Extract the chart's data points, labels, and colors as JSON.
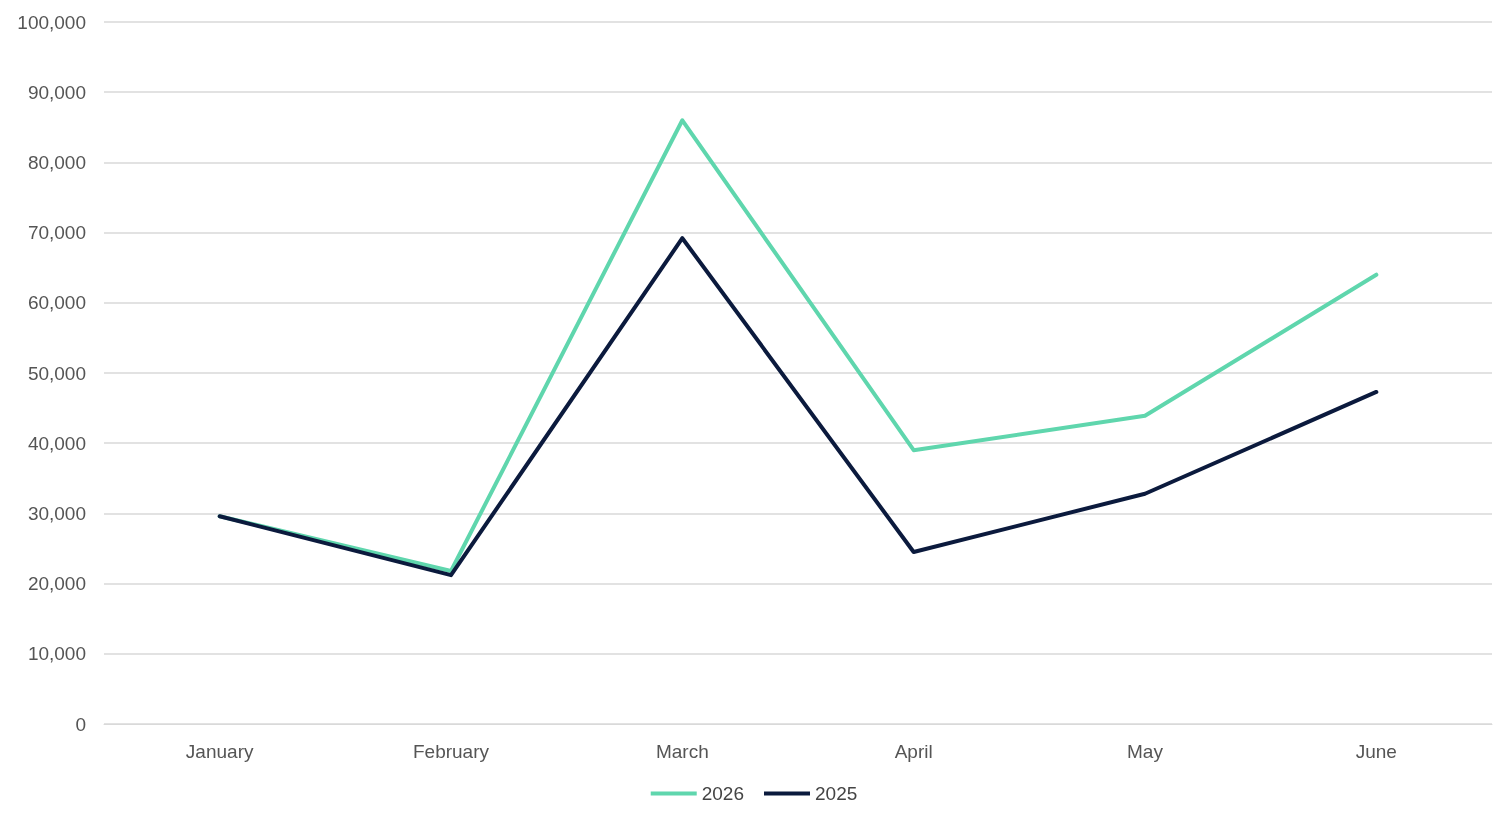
{
  "chart_data": {
    "type": "line",
    "categories": [
      "January",
      "February",
      "March",
      "April",
      "May",
      "June"
    ],
    "series": [
      {
        "name": "2026",
        "color": "#5fd6ad",
        "values": [
          29600,
          21800,
          86000,
          39000,
          43900,
          64000
        ]
      },
      {
        "name": "2025",
        "color": "#0b1a3d",
        "values": [
          29600,
          21200,
          69200,
          24500,
          32800,
          47300
        ]
      }
    ],
    "ylim": [
      0,
      100000
    ],
    "yticks": [
      0,
      {
        "value": 10000,
        "label": "10,000"
      },
      {
        "value": 20000,
        "label": "20,000"
      },
      {
        "value": 30000,
        "label": "30,000"
      },
      {
        "value": 40000,
        "label": "40,000"
      },
      {
        "value": 50000,
        "label": "50,000"
      },
      {
        "value": 60000,
        "label": "60,000"
      },
      {
        "value": 70000,
        "label": "70,000"
      },
      {
        "value": 80000,
        "label": "80,000"
      },
      {
        "value": 90000,
        "label": "90,000"
      },
      {
        "value": 100000,
        "label": "100,000"
      }
    ],
    "grid": "y",
    "legend": "bottom",
    "marker": "none",
    "line_style": "solid"
  }
}
